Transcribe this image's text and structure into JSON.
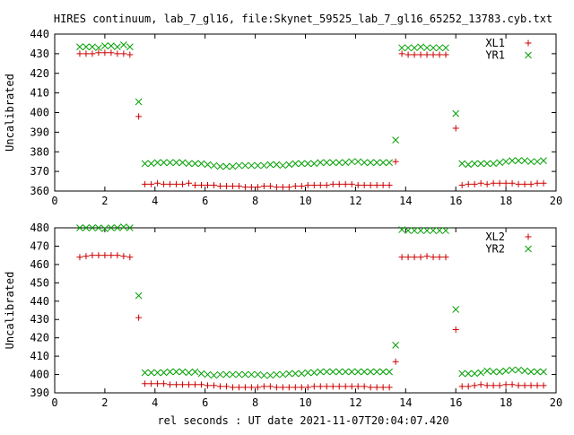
{
  "title": "HIRES continuum, lab_7_gl16, file:Skynet_59525_lab_7_gl16_65252_13783.cyb.txt",
  "xlabel": "rel seconds : UT date 2021-11-07T20:04:07.420",
  "colors": {
    "red": "#cc0000",
    "green": "#00a000",
    "axis": "#000000"
  },
  "chart_data": [
    {
      "type": "scatter",
      "title": "HIRES continuum, lab_7_gl16, file:Skynet_59525_lab_7_gl16_65252_13783.cyb.txt",
      "xlabel": "",
      "ylabel": "Uncalibrated",
      "xlim": [
        0,
        20
      ],
      "ylim": [
        360,
        440
      ],
      "xticks": [
        0,
        2,
        4,
        6,
        8,
        10,
        12,
        14,
        16,
        18,
        20
      ],
      "yticks": [
        360,
        370,
        380,
        390,
        400,
        410,
        420,
        430,
        440
      ],
      "legend_position": "top-right",
      "grid": false,
      "x": [
        1.0,
        1.25,
        1.5,
        1.75,
        2.0,
        2.25,
        2.5,
        2.75,
        3.0,
        3.35,
        3.6,
        3.85,
        4.1,
        4.35,
        4.6,
        4.85,
        5.1,
        5.35,
        5.6,
        5.85,
        6.1,
        6.35,
        6.6,
        6.85,
        7.1,
        7.35,
        7.6,
        7.85,
        8.1,
        8.35,
        8.6,
        8.85,
        9.1,
        9.35,
        9.6,
        9.85,
        10.1,
        10.35,
        10.6,
        10.85,
        11.1,
        11.35,
        11.6,
        11.85,
        12.1,
        12.35,
        12.6,
        12.85,
        13.1,
        13.35,
        13.6,
        13.85,
        14.1,
        14.35,
        14.6,
        14.85,
        15.1,
        15.35,
        15.6,
        16.0,
        16.25,
        16.5,
        16.75,
        17.0,
        17.25,
        17.5,
        17.75,
        18.0,
        18.25,
        18.5,
        18.75,
        19.0,
        19.25,
        19.5
      ],
      "series": [
        {
          "name": "XL1",
          "marker": "plus",
          "color": "#cc0000",
          "values": [
            430,
            430,
            430,
            430.5,
            430.5,
            430.5,
            430,
            430,
            429.5,
            398,
            363.5,
            363.5,
            364,
            363.5,
            363.5,
            363.5,
            363.5,
            364,
            363,
            363,
            363,
            363,
            362.5,
            362.5,
            362.5,
            362.5,
            362,
            362,
            362,
            362.5,
            362.5,
            362,
            362,
            362,
            362.5,
            362.5,
            363,
            363,
            363,
            363,
            363.5,
            363.5,
            363.5,
            363.5,
            363,
            363,
            363,
            363,
            363,
            363,
            375,
            430,
            429.5,
            429.5,
            429.5,
            429.5,
            429.5,
            429.5,
            429.5,
            392,
            363,
            363.5,
            363.5,
            364,
            363.5,
            364,
            364,
            364,
            364,
            363.5,
            363.5,
            363.5,
            364,
            364
          ]
        },
        {
          "name": "YR1",
          "marker": "cross",
          "color": "#00a000",
          "values": [
            433.5,
            433.5,
            433.5,
            433,
            434,
            434,
            433.5,
            434.5,
            433.5,
            405.5,
            374,
            374,
            374.5,
            374.5,
            374.5,
            374.5,
            374.5,
            374,
            374,
            374,
            373.5,
            373,
            372.5,
            372.5,
            372.5,
            373,
            373,
            373,
            373,
            373,
            373.5,
            373.5,
            373,
            373.5,
            374,
            374,
            374,
            374,
            374.5,
            374.5,
            374.5,
            374.5,
            374.5,
            375,
            375,
            374.5,
            374.5,
            374.5,
            374.5,
            374.5,
            386,
            433,
            433,
            433,
            433.5,
            433,
            433,
            433,
            433,
            399.5,
            374,
            373.5,
            374,
            374,
            374,
            374,
            374.5,
            375,
            375.5,
            375.5,
            375.5,
            375,
            375,
            375.5
          ]
        }
      ]
    },
    {
      "type": "scatter",
      "title": "",
      "xlabel": "rel seconds : UT date 2021-11-07T20:04:07.420",
      "ylabel": "Uncalibrated",
      "xlim": [
        0,
        20
      ],
      "ylim": [
        390,
        480
      ],
      "xticks": [
        0,
        2,
        4,
        6,
        8,
        10,
        12,
        14,
        16,
        18,
        20
      ],
      "yticks": [
        390,
        400,
        410,
        420,
        430,
        440,
        450,
        460,
        470,
        480
      ],
      "legend_position": "top-right",
      "grid": false,
      "x": [
        1.0,
        1.25,
        1.5,
        1.75,
        2.0,
        2.25,
        2.5,
        2.75,
        3.0,
        3.35,
        3.6,
        3.85,
        4.1,
        4.35,
        4.6,
        4.85,
        5.1,
        5.35,
        5.6,
        5.85,
        6.1,
        6.35,
        6.6,
        6.85,
        7.1,
        7.35,
        7.6,
        7.85,
        8.1,
        8.35,
        8.6,
        8.85,
        9.1,
        9.35,
        9.6,
        9.85,
        10.1,
        10.35,
        10.6,
        10.85,
        11.1,
        11.35,
        11.6,
        11.85,
        12.1,
        12.35,
        12.6,
        12.85,
        13.1,
        13.35,
        13.6,
        13.85,
        14.1,
        14.35,
        14.6,
        14.85,
        15.1,
        15.35,
        15.6,
        16.0,
        16.25,
        16.5,
        16.75,
        17.0,
        17.25,
        17.5,
        17.75,
        18.0,
        18.25,
        18.5,
        18.75,
        19.0,
        19.25,
        19.5
      ],
      "series": [
        {
          "name": "XL2",
          "marker": "plus",
          "color": "#cc0000",
          "values": [
            464,
            464.5,
            465,
            465,
            465,
            465,
            465,
            464.5,
            464,
            431,
            395,
            395,
            395,
            395,
            394.5,
            394.5,
            394.5,
            394.5,
            394.5,
            394.5,
            394,
            394,
            393.5,
            393.5,
            393,
            393,
            393,
            393,
            393,
            393.5,
            393.5,
            393,
            393,
            393,
            393,
            393,
            393,
            393.5,
            393.5,
            393.5,
            393.5,
            393.5,
            393.5,
            393.5,
            393.5,
            393.5,
            393,
            393,
            393,
            393,
            407,
            464,
            464,
            464,
            464,
            464.5,
            464,
            464,
            464,
            424.5,
            393.5,
            393.5,
            394,
            394.5,
            394,
            394,
            394,
            394.5,
            394.5,
            394,
            394,
            394,
            394,
            394
          ]
        },
        {
          "name": "YR2",
          "marker": "cross",
          "color": "#00a000",
          "values": [
            480,
            480,
            480,
            480,
            479.5,
            480,
            480,
            480.5,
            480,
            443,
            401,
            401,
            401,
            401,
            401.5,
            401.5,
            401.5,
            401,
            401.5,
            400.5,
            400,
            399.5,
            400,
            400,
            400,
            400,
            400,
            400,
            400,
            399.5,
            399.5,
            400,
            400,
            400.5,
            400.5,
            400.5,
            401,
            401,
            401.5,
            401.5,
            401.5,
            401.5,
            401.5,
            401.5,
            401.5,
            401.5,
            401.5,
            401.5,
            401.5,
            401.5,
            416,
            479,
            478.5,
            478.5,
            478.5,
            478.5,
            478.5,
            478.5,
            478.5,
            435.5,
            400.5,
            400.5,
            400.5,
            401,
            402,
            401.5,
            401.5,
            402,
            402.5,
            402.5,
            402,
            401.5,
            401.5,
            401.5
          ]
        }
      ]
    }
  ]
}
